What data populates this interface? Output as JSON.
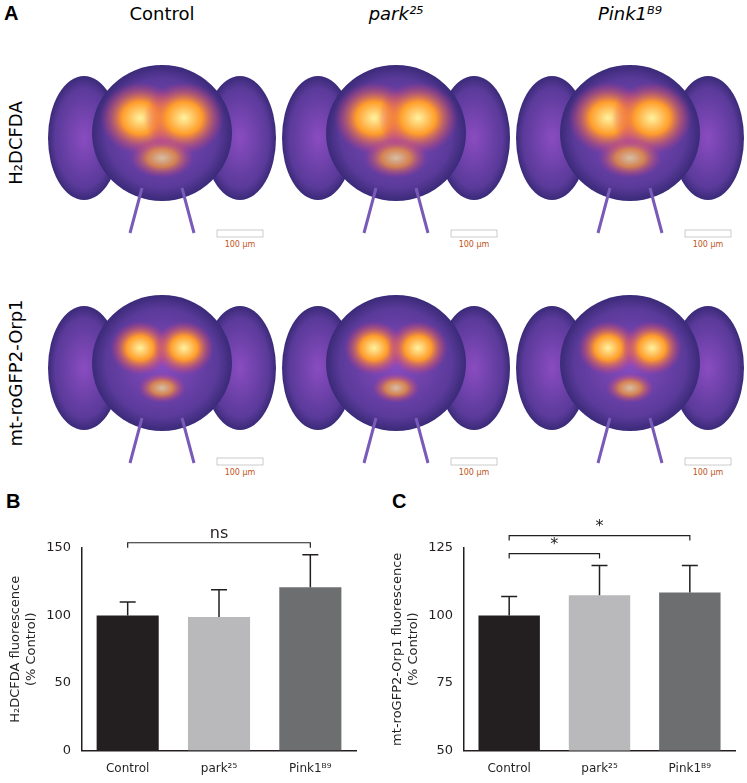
{
  "panel_a": {
    "panel_label": "A",
    "columns": [
      "Control",
      "park²⁵",
      "Pink1ᴮ⁹"
    ],
    "rows": [
      "H₂DCFDA",
      "mt-roGFP2-Orp1"
    ],
    "scale_bar": "100 μm"
  },
  "chart_data": [
    {
      "type": "bar",
      "panel_label": "B",
      "y_label": [
        "H₂DCFDA fluorescence",
        "(% Control)"
      ],
      "categories": [
        "Control",
        "park²⁵",
        "Pink1ᴮ⁹"
      ],
      "values": [
        100,
        99,
        121
      ],
      "errors": [
        10,
        20,
        24
      ],
      "colors": [
        "#231f20",
        "#b9b9bb",
        "#6d6e70"
      ],
      "ylim": [
        0,
        150
      ],
      "yticks": [
        0,
        50,
        100,
        150
      ],
      "grid": false,
      "annotations": [
        {
          "text": "ns",
          "from": "Control",
          "to": "Pink1ᴮ⁹"
        }
      ]
    },
    {
      "type": "bar",
      "panel_label": "C",
      "y_label": [
        "mt-roGFP2-Orp1 fluorescence",
        "(% Control)"
      ],
      "categories": [
        "Control",
        "park²⁵",
        "Pink1ᴮ⁹"
      ],
      "values": [
        100,
        107.5,
        108.5
      ],
      "errors": [
        7,
        11,
        10
      ],
      "colors": [
        "#231f20",
        "#b9b9bb",
        "#6d6e70"
      ],
      "ylim": [
        50,
        125
      ],
      "yticks": [
        50,
        75,
        100,
        125
      ],
      "grid": false,
      "annotations": [
        {
          "text": "*",
          "from": "Control",
          "to": "park²⁵"
        },
        {
          "text": "*",
          "from": "Control",
          "to": "Pink1ᴮ⁹"
        }
      ]
    }
  ]
}
